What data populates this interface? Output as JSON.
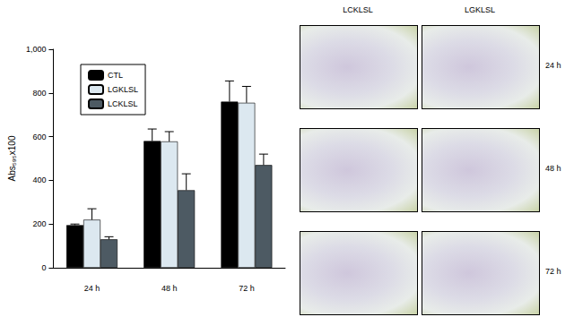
{
  "chart_data": {
    "type": "bar",
    "y_label": "Abs₅₉₅x100",
    "categories": [
      "24 h",
      "48 h",
      "72 h"
    ],
    "series": [
      {
        "name": "CTL",
        "color": "#000000",
        "values": [
          195,
          580,
          760
        ],
        "errors": [
          5,
          55,
          95
        ]
      },
      {
        "name": "LGKLSL",
        "color": "#dce8f0",
        "values": [
          220,
          578,
          755
        ],
        "errors": [
          50,
          45,
          75
        ]
      },
      {
        "name": "LCKLSL",
        "color": "#4d5a63",
        "values": [
          130,
          355,
          470
        ],
        "errors": [
          12,
          75,
          50
        ]
      }
    ],
    "ylim": [
      0,
      1000
    ],
    "yticks": [
      0,
      200,
      400,
      600,
      800,
      1000
    ],
    "grid": false,
    "legend": "upper left"
  },
  "image_panel": {
    "columns": [
      "LCKLSL",
      "LGKLSL"
    ],
    "rows": [
      "24 h",
      "48 h",
      "72 h"
    ]
  }
}
